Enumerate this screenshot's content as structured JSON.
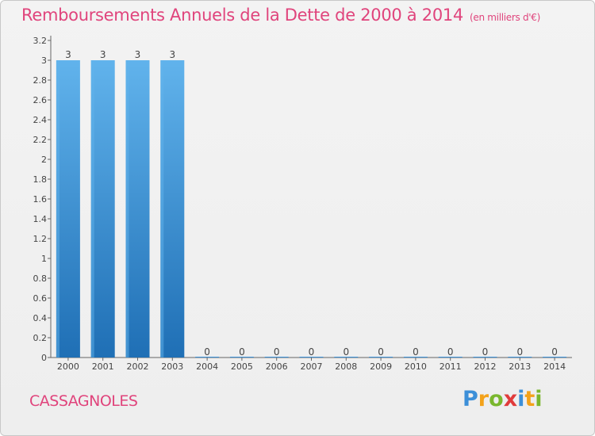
{
  "chart_data": {
    "type": "bar",
    "title": "Remboursements Annuels de la Dette de 2000 à 2014",
    "subtitle": "(en milliers d'€)",
    "categories": [
      "2000",
      "2001",
      "2002",
      "2003",
      "2004",
      "2005",
      "2006",
      "2007",
      "2008",
      "2009",
      "2010",
      "2011",
      "2012",
      "2013",
      "2014"
    ],
    "values": [
      3,
      3,
      3,
      3,
      0,
      0,
      0,
      0,
      0,
      0,
      0,
      0,
      0,
      0,
      0
    ],
    "value_labels": [
      "3",
      "3",
      "3",
      "3",
      "0",
      "0",
      "0",
      "0",
      "0",
      "0",
      "0",
      "0",
      "0",
      "0",
      "0"
    ],
    "y_ticks": [
      "0",
      "0.2",
      "0.4",
      "0.6",
      "0.8",
      "1",
      "1.2",
      "1.4",
      "1.6",
      "1.8",
      "2",
      "2.2",
      "2.4",
      "2.6",
      "2.8",
      "3",
      "3.2"
    ],
    "ylim": [
      0,
      3.2
    ],
    "xlabel": "",
    "ylabel": "",
    "bar_color": "#3a8fd6",
    "bar_color_light": "#61b3ec",
    "bar_color_dark": "#1f6fb5"
  },
  "footer": {
    "commune": "CASSAGNOLES",
    "logo_letters": [
      "P",
      "r",
      "o",
      "x",
      "i",
      "t",
      "i"
    ],
    "logo_colors": [
      "#3c8fd8",
      "#f3a21a",
      "#7ab72e",
      "#e03b3b",
      "#3c8fd8",
      "#f3a21a",
      "#7ab72e"
    ]
  },
  "colors": {
    "accent": "#e0447c"
  }
}
